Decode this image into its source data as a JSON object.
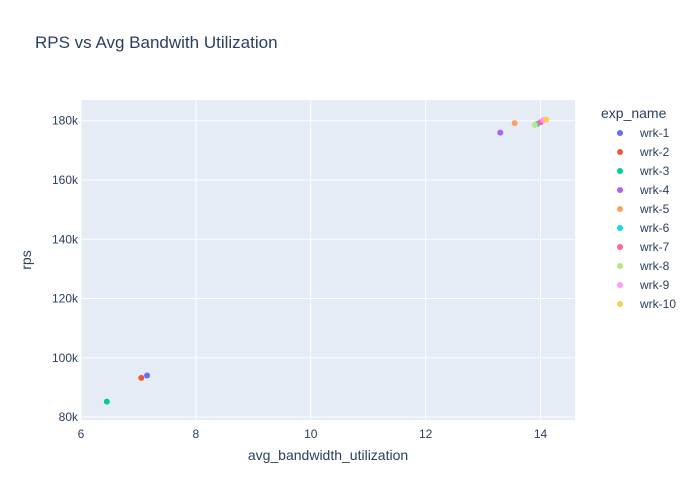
{
  "chart_data": {
    "type": "scatter",
    "title": "RPS vs Avg Bandwith Utilization",
    "xlabel": "avg_bandwidth_utilization",
    "ylabel": "rps",
    "xlim": [
      6.0,
      14.6
    ],
    "ylim": [
      79000,
      187000
    ],
    "x_ticks": [
      6,
      8,
      10,
      12,
      14
    ],
    "y_ticks": [
      80000,
      100000,
      120000,
      140000,
      160000,
      180000
    ],
    "y_tick_labels": [
      "80k",
      "100k",
      "120k",
      "140k",
      "160k",
      "180k"
    ],
    "grid": true,
    "legend_title": "exp_name",
    "legend_position": "right",
    "series": [
      {
        "name": "wrk-1",
        "color": "#636efa",
        "x": [
          7.15
        ],
        "y": [
          94000
        ]
      },
      {
        "name": "wrk-2",
        "color": "#ef553b",
        "x": [
          7.05
        ],
        "y": [
          93200
        ]
      },
      {
        "name": "wrk-3",
        "color": "#00cc96",
        "x": [
          6.45
        ],
        "y": [
          85200
        ]
      },
      {
        "name": "wrk-4",
        "color": "#ab63fa",
        "x": [
          13.3
        ],
        "y": [
          176000
        ]
      },
      {
        "name": "wrk-5",
        "color": "#ffa15a",
        "x": [
          13.55
        ],
        "y": [
          179200
        ]
      },
      {
        "name": "wrk-6",
        "color": "#19d3f3",
        "x": [
          13.95
        ],
        "y": [
          179000
        ]
      },
      {
        "name": "wrk-7",
        "color": "#ff6692",
        "x": [
          14.0
        ],
        "y": [
          179500
        ]
      },
      {
        "name": "wrk-8",
        "color": "#b6e880",
        "x": [
          13.9
        ],
        "y": [
          178600
        ]
      },
      {
        "name": "wrk-9",
        "color": "#ff97ff",
        "x": [
          14.05
        ],
        "y": [
          180200
        ]
      },
      {
        "name": "wrk-10",
        "color": "#fecb52",
        "x": [
          14.1
        ],
        "y": [
          180400
        ]
      }
    ]
  }
}
